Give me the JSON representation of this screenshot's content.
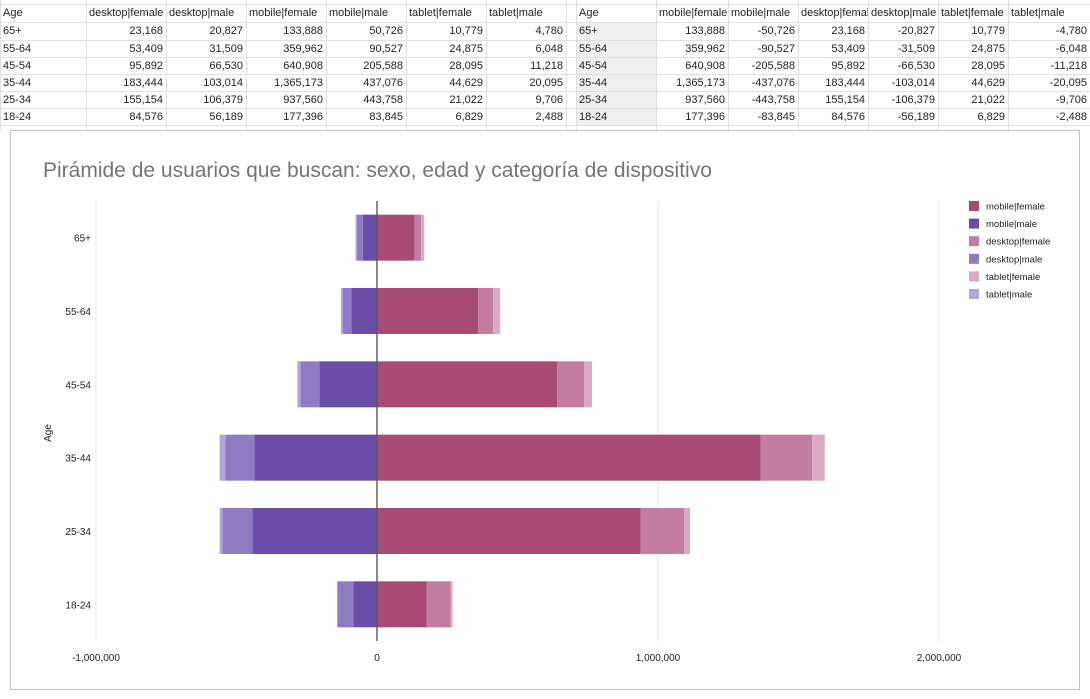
{
  "table_left": {
    "headers": [
      "Age",
      "desktop|female",
      "desktop|male",
      "mobile|female",
      "mobile|male",
      "tablet|female",
      "tablet|male"
    ],
    "rows": [
      [
        "65+",
        "23,168",
        "20,827",
        "133,888",
        "50,726",
        "10,779",
        "4,780"
      ],
      [
        "55-64",
        "53,409",
        "31,509",
        "359,962",
        "90,527",
        "24,875",
        "6,048"
      ],
      [
        "45-54",
        "95,892",
        "66,530",
        "640,908",
        "205,588",
        "28,095",
        "11,218"
      ],
      [
        "35-44",
        "183,444",
        "103,014",
        "1,365,173",
        "437,076",
        "44,629",
        "20,095"
      ],
      [
        "25-34",
        "155,154",
        "106,379",
        "937,560",
        "443,758",
        "21,022",
        "9,706"
      ],
      [
        "18-24",
        "84,576",
        "56,189",
        "177,396",
        "83,845",
        "6,829",
        "2,488"
      ]
    ]
  },
  "table_right": {
    "headers": [
      "Age",
      "mobile|female",
      "mobile|male",
      "desktop|female",
      "desktop|male",
      "tablet|female",
      "tablet|male"
    ],
    "rows": [
      [
        "65+",
        "133,888",
        "-50,726",
        "23,168",
        "-20,827",
        "10,779",
        "-4,780"
      ],
      [
        "55-64",
        "359,962",
        "-90,527",
        "53,409",
        "-31,509",
        "24,875",
        "-6,048"
      ],
      [
        "45-54",
        "640,908",
        "-205,588",
        "95,892",
        "-66,530",
        "28,095",
        "-11,218"
      ],
      [
        "35-44",
        "1,365,173",
        "-437,076",
        "183,444",
        "-103,014",
        "44,629",
        "-20,095"
      ],
      [
        "25-34",
        "937,560",
        "-443,758",
        "155,154",
        "-106,379",
        "21,022",
        "-9,706"
      ],
      [
        "18-24",
        "177,396",
        "-83,845",
        "84,576",
        "-56,189",
        "6,829",
        "-2,488"
      ]
    ]
  },
  "chart_data": {
    "type": "bar",
    "orientation": "horizontal",
    "stacked": true,
    "title": "Pirámide de usuarios que buscan: sexo, edad y categoría de dispositivo",
    "ylabel": "Age",
    "xlabel": "",
    "categories": [
      "65+",
      "55-64",
      "45-54",
      "35-44",
      "25-34",
      "18-24"
    ],
    "xlim": [
      -1000000,
      2000000
    ],
    "x_ticks": [
      -1000000,
      0,
      1000000,
      2000000
    ],
    "x_tick_labels": [
      "-1,000,000",
      "0",
      "1,000,000",
      "2,000,000"
    ],
    "grid": true,
    "legend_position": "right",
    "series": [
      {
        "name": "mobile|female",
        "color": "#a84b74",
        "values": [
          133888,
          359962,
          640908,
          1365173,
          937560,
          177396
        ]
      },
      {
        "name": "mobile|male",
        "color": "#6a4ea8",
        "values": [
          -50726,
          -90527,
          -205588,
          -437076,
          -443758,
          -83845
        ]
      },
      {
        "name": "desktop|female",
        "color": "#c27ca0",
        "values": [
          23168,
          53409,
          95892,
          183444,
          155154,
          84576
        ]
      },
      {
        "name": "desktop|male",
        "color": "#8e7bc4",
        "values": [
          -20827,
          -31509,
          -66530,
          -103014,
          -106379,
          -56189
        ]
      },
      {
        "name": "tablet|female",
        "color": "#dba9c3",
        "values": [
          10779,
          24875,
          28095,
          44629,
          21022,
          6829
        ]
      },
      {
        "name": "tablet|male",
        "color": "#b3a5dc",
        "values": [
          -4780,
          -6048,
          -11218,
          -20095,
          -9706,
          -2488
        ]
      }
    ]
  }
}
